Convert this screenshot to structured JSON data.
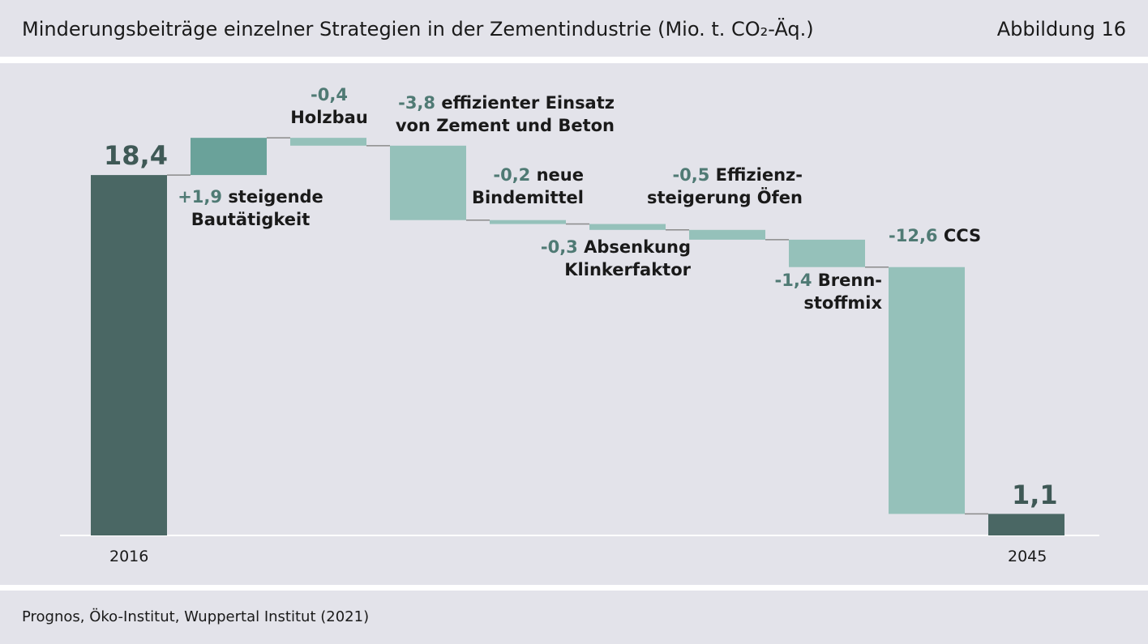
{
  "header": {
    "title": "Minderungsbeiträge einzelner Strategien in der Zementindustrie (Mio. t. CO₂-Äq.)",
    "figure_label": "Abbildung 16"
  },
  "footer": {
    "source": "Prognos, Öko-Institut, Wuppertal Institut (2021)"
  },
  "colors": {
    "total": "#4a6764",
    "increase": "#6aa29a",
    "decrease": "#95c1ba",
    "connector": "#8a8a8a",
    "value_text": "#4f7a74"
  },
  "chart_data": {
    "type": "bar",
    "subtype": "waterfall",
    "title": "Minderungsbeiträge einzelner Strategien in der Zementindustrie (Mio. t. CO₂-Äq.)",
    "steps": [
      {
        "kind": "total",
        "tick": "2016",
        "value": 18.4,
        "value_label": "18,4"
      },
      {
        "kind": "delta",
        "value": 1.9,
        "value_label": "+1,9",
        "label_lines": [
          "steigende",
          "Bautätigkeit"
        ]
      },
      {
        "kind": "delta",
        "value": -0.4,
        "value_label": "-0,4",
        "label_lines": [
          "Holzbau"
        ]
      },
      {
        "kind": "delta",
        "value": -3.8,
        "value_label": "-3,8",
        "label_lines": [
          "effizienter Einsatz",
          "von Zement und Beton"
        ]
      },
      {
        "kind": "delta",
        "value": -0.2,
        "value_label": "-0,2",
        "label_lines": [
          "neue",
          "Bindemittel"
        ]
      },
      {
        "kind": "delta",
        "value": -0.3,
        "value_label": "-0,3",
        "label_lines": [
          "Absenkung",
          "Klinkerfaktor"
        ]
      },
      {
        "kind": "delta",
        "value": -0.5,
        "value_label": "-0,5",
        "label_lines": [
          "Effizienz-",
          "steigerung Öfen"
        ]
      },
      {
        "kind": "delta",
        "value": -1.4,
        "value_label": "-1,4",
        "label_lines": [
          "Brenn-",
          "stoffmix"
        ]
      },
      {
        "kind": "delta",
        "value": -12.6,
        "value_label": "-12,6",
        "label_lines": [
          "CCS"
        ]
      },
      {
        "kind": "total",
        "tick": "2045",
        "value": 1.1,
        "value_label": "1,1"
      }
    ],
    "ylim": [
      0,
      20.3
    ]
  }
}
